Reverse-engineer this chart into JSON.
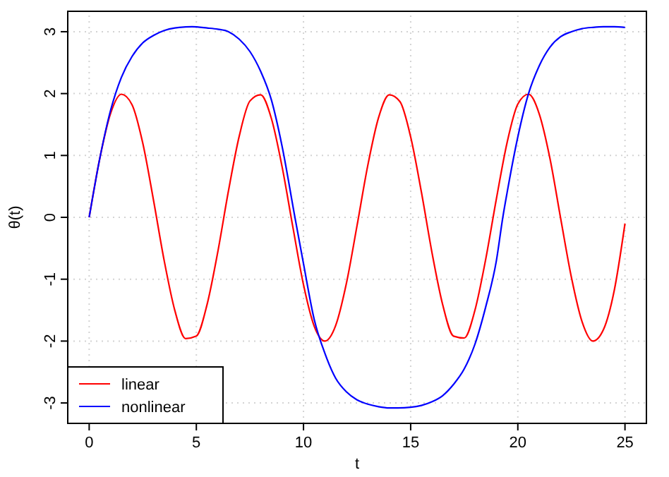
{
  "chart_data": {
    "type": "line",
    "xlabel": "t",
    "ylabel": "θ(t)",
    "xlim": [
      -1,
      26
    ],
    "ylim": [
      -3.33,
      3.33
    ],
    "xticks": [
      0,
      5,
      10,
      15,
      20,
      25
    ],
    "yticks": [
      -3,
      -2,
      -1,
      0,
      1,
      2,
      3
    ],
    "grid": true,
    "legend": "bottom left",
    "line_style": "solid",
    "marker": "none",
    "series": [
      {
        "name": "linear",
        "color": "#ff0000",
        "x": [
          0,
          0.5,
          1,
          1.5,
          2,
          2.5,
          3,
          3.5,
          4,
          4.5,
          5,
          5.5,
          6,
          6.5,
          7,
          7.5,
          8,
          8.5,
          9,
          9.5,
          10,
          10.5,
          11,
          11.5,
          12,
          12.5,
          13,
          13.5,
          14,
          14.5,
          15,
          15.5,
          16,
          16.5,
          17,
          17.5,
          18,
          18.5,
          19,
          19.5,
          20,
          20.5,
          21,
          21.5,
          22,
          22.5,
          23,
          23.5,
          24,
          24.5,
          25
        ],
        "values": [
          0,
          0.96,
          1.68,
          1.99,
          1.82,
          1.2,
          0.28,
          -0.7,
          -1.51,
          -1.96,
          -1.92,
          -1.41,
          -0.56,
          0.43,
          1.31,
          1.88,
          1.98,
          1.6,
          0.82,
          -0.15,
          -1.09,
          -1.76,
          -2,
          -1.75,
          -1.07,
          -0.13,
          0.84,
          1.61,
          1.98,
          1.87,
          1.3,
          0.41,
          -0.58,
          -1.42,
          -1.92,
          -1.95,
          -1.5,
          -0.68,
          0.3,
          1.21,
          1.83,
          1.99,
          1.67,
          0.95,
          -0.02,
          -0.97,
          -1.69,
          -2,
          -1.81,
          -1.18,
          -0.1
        ]
      },
      {
        "name": "nonlinear",
        "color": "#0000ff",
        "x": [
          0,
          0.5,
          1,
          1.5,
          2,
          2.5,
          3,
          3.5,
          4,
          4.8,
          5.5,
          6,
          6.5,
          7,
          7.5,
          8,
          8.5,
          9,
          9.6,
          10,
          10.5,
          11,
          11.5,
          12,
          12.5,
          13,
          13.5,
          14,
          14.4,
          15,
          15.5,
          16,
          16.5,
          17,
          17.5,
          18,
          18.5,
          19,
          19.3,
          19.5,
          20,
          20.5,
          21,
          21.5,
          22,
          22.5,
          23,
          23.5,
          24,
          24.5,
          25
        ],
        "values": [
          0,
          0.96,
          1.73,
          2.26,
          2.6,
          2.82,
          2.94,
          3.02,
          3.06,
          3.08,
          3.06,
          3.04,
          3,
          2.88,
          2.68,
          2.36,
          1.9,
          1.15,
          0,
          -0.75,
          -1.65,
          -2.2,
          -2.6,
          -2.82,
          -2.95,
          -3.02,
          -3.06,
          -3.08,
          -3.08,
          -3.07,
          -3.04,
          -2.98,
          -2.88,
          -2.7,
          -2.45,
          -2.05,
          -1.45,
          -0.7,
          0,
          0.4,
          1.3,
          2,
          2.45,
          2.75,
          2.92,
          3,
          3.05,
          3.07,
          3.08,
          3.08,
          3.07
        ]
      }
    ]
  }
}
